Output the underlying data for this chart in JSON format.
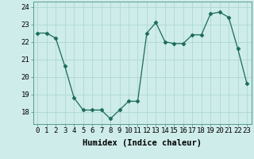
{
  "x": [
    0,
    1,
    2,
    3,
    4,
    5,
    6,
    7,
    8,
    9,
    10,
    11,
    12,
    13,
    14,
    15,
    16,
    17,
    18,
    19,
    20,
    21,
    22,
    23
  ],
  "y": [
    22.5,
    22.5,
    22.2,
    20.6,
    18.8,
    18.1,
    18.1,
    18.1,
    17.6,
    18.1,
    18.6,
    18.6,
    22.5,
    23.1,
    22.0,
    21.9,
    21.9,
    22.4,
    22.4,
    23.6,
    23.7,
    23.4,
    21.6,
    19.6
  ],
  "line_color": "#1a6b5a",
  "marker": "D",
  "marker_size": 2.5,
  "bg_color": "#ceecea",
  "grid_color": "#aed8d5",
  "xlabel": "Humidex (Indice chaleur)",
  "xlabel_fontsize": 7.5,
  "xlim": [
    -0.5,
    23.5
  ],
  "ylim": [
    17.3,
    24.3
  ],
  "yticks": [
    18,
    19,
    20,
    21,
    22,
    23,
    24
  ],
  "xtick_labels": [
    "0",
    "1",
    "2",
    "3",
    "4",
    "5",
    "6",
    "7",
    "8",
    "9",
    "10",
    "11",
    "12",
    "13",
    "14",
    "15",
    "16",
    "17",
    "18",
    "19",
    "20",
    "21",
    "22",
    "23"
  ],
  "tick_fontsize": 6.5
}
